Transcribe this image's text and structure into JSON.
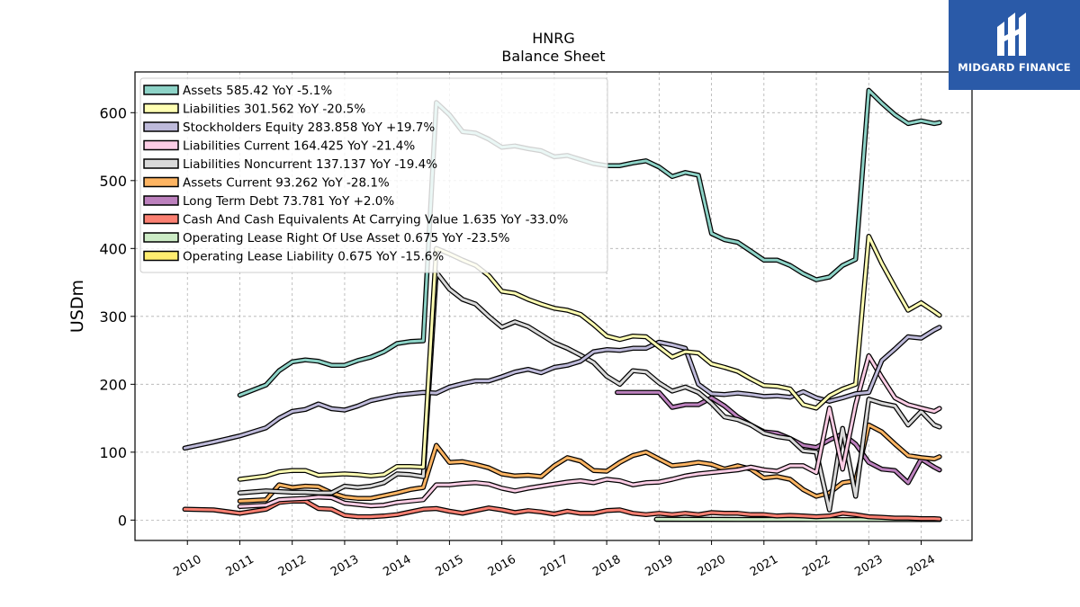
{
  "chart_data": {
    "type": "line",
    "title": "HNRG",
    "subtitle": "Balance  Sheet",
    "ylabel": "USDm",
    "xlabel": "",
    "ylim": [
      -30,
      660
    ],
    "xlim": [
      2009.0,
      2024.97
    ],
    "yticks": [
      0,
      100,
      200,
      300,
      400,
      500,
      600
    ],
    "xticks": [
      "2010",
      "2011",
      "2012",
      "2013",
      "2014",
      "2015",
      "2016",
      "2017",
      "2018",
      "2019",
      "2020",
      "2021",
      "2022",
      "2023",
      "2024"
    ],
    "grid": true,
    "legend_position": "top-left",
    "series": [
      {
        "name": "Assets",
        "legend": "Assets  585.42 YoY -5.1%",
        "color": "#8dd3c7",
        "x": [
          2011.0,
          2011.5,
          2011.75,
          2012.0,
          2012.25,
          2012.5,
          2012.75,
          2013.0,
          2013.25,
          2013.5,
          2013.75,
          2014.0,
          2014.25,
          2014.5,
          2014.75,
          2015.0,
          2015.25,
          2015.5,
          2015.75,
          2016.0,
          2016.25,
          2016.5,
          2016.75,
          2017.0,
          2017.25,
          2017.5,
          2017.75,
          2018.0,
          2018.25,
          2018.5,
          2018.75,
          2019.0,
          2019.25,
          2019.5,
          2019.75,
          2020.0,
          2020.25,
          2020.5,
          2020.75,
          2021.0,
          2021.25,
          2021.5,
          2021.75,
          2022.0,
          2022.25,
          2022.5,
          2022.75,
          2023.0,
          2023.25,
          2023.5,
          2023.75,
          2024.0,
          2024.25,
          2024.35
        ],
        "y": [
          184,
          199,
          220,
          233,
          236,
          234,
          228,
          228,
          235,
          240,
          248,
          260,
          263,
          264,
          615,
          597,
          572,
          570,
          561,
          549,
          551,
          547,
          544,
          535,
          537,
          531,
          525,
          522,
          522,
          526,
          529,
          520,
          506,
          512,
          508,
          422,
          413,
          409,
          396,
          383,
          383,
          375,
          363,
          354,
          358,
          375,
          384,
          633,
          614,
          597,
          584,
          588,
          584,
          585.42
        ]
      },
      {
        "name": "Liabilities",
        "legend": "Liabilities  301.562 YoY -20.5%",
        "color": "#ffffb3",
        "x": [
          2011.0,
          2011.5,
          2011.75,
          2012.0,
          2012.25,
          2012.5,
          2012.75,
          2013.0,
          2013.25,
          2013.5,
          2013.75,
          2014.0,
          2014.25,
          2014.5,
          2014.75,
          2015.0,
          2015.25,
          2015.5,
          2015.75,
          2016.0,
          2016.25,
          2016.5,
          2016.75,
          2017.0,
          2017.25,
          2017.5,
          2017.75,
          2018.0,
          2018.25,
          2018.5,
          2018.75,
          2019.0,
          2019.25,
          2019.5,
          2019.75,
          2020.0,
          2020.25,
          2020.5,
          2020.75,
          2021.0,
          2021.25,
          2021.5,
          2021.75,
          2022.0,
          2022.25,
          2022.5,
          2022.75,
          2023.0,
          2023.25,
          2023.5,
          2023.75,
          2024.0,
          2024.25,
          2024.35
        ],
        "y": [
          60,
          65,
          71,
          73,
          73,
          66,
          67,
          68,
          67,
          65,
          67,
          79,
          79,
          78,
          400,
          392,
          383,
          375,
          360,
          337,
          334,
          325,
          318,
          312,
          309,
          303,
          288,
          271,
          266,
          271,
          270,
          255,
          240,
          248,
          246,
          230,
          225,
          219,
          208,
          198,
          197,
          193,
          170,
          165,
          183,
          193,
          200,
          418,
          378,
          343,
          309,
          320,
          307,
          301.562
        ]
      },
      {
        "name": "Stockholders Equity",
        "legend": "Stockholders Equity  283.858 YoY +19.7%",
        "color": "#bebada",
        "x": [
          2009.95,
          2010.5,
          2011.0,
          2011.5,
          2011.75,
          2012.0,
          2012.25,
          2012.5,
          2012.75,
          2013.0,
          2013.25,
          2013.5,
          2013.75,
          2014.0,
          2014.25,
          2014.5,
          2014.75,
          2015.0,
          2015.25,
          2015.5,
          2015.75,
          2016.0,
          2016.25,
          2016.5,
          2016.75,
          2017.0,
          2017.25,
          2017.5,
          2017.75,
          2018.0,
          2018.25,
          2018.5,
          2018.75,
          2019.0,
          2019.25,
          2019.5,
          2019.75,
          2020.0,
          2020.25,
          2020.5,
          2020.75,
          2021.0,
          2021.25,
          2021.5,
          2021.75,
          2022.0,
          2022.25,
          2022.5,
          2022.75,
          2023.0,
          2023.25,
          2023.5,
          2023.75,
          2024.0,
          2024.25,
          2024.35
        ],
        "y": [
          106,
          115,
          124,
          136,
          150,
          160,
          163,
          171,
          164,
          162,
          168,
          176,
          180,
          184,
          186,
          188,
          187,
          196,
          201,
          205,
          205,
          211,
          218,
          222,
          217,
          225,
          228,
          234,
          248,
          251,
          250,
          253,
          253,
          262,
          258,
          253,
          200,
          186,
          185,
          187,
          185,
          182,
          183,
          181,
          189,
          180,
          175,
          180,
          186,
          188,
          235,
          252,
          270,
          268,
          280,
          283.858
        ]
      },
      {
        "name": "Liabilities Current",
        "legend": "Liabilities Current  164.425 YoY -21.4%",
        "color": "#fccde5",
        "x": [
          2011.0,
          2011.5,
          2011.75,
          2012.0,
          2012.25,
          2012.5,
          2012.75,
          2013.0,
          2013.25,
          2013.5,
          2013.75,
          2014.0,
          2014.25,
          2014.5,
          2014.75,
          2015.0,
          2015.25,
          2015.5,
          2015.75,
          2016.0,
          2016.25,
          2016.5,
          2016.75,
          2017.0,
          2017.25,
          2017.5,
          2017.75,
          2018.0,
          2018.25,
          2018.5,
          2018.75,
          2019.0,
          2019.25,
          2019.5,
          2019.75,
          2020.0,
          2020.25,
          2020.5,
          2020.75,
          2021.0,
          2021.25,
          2021.5,
          2021.75,
          2022.0,
          2022.25,
          2022.5,
          2022.75,
          2023.0,
          2023.25,
          2023.5,
          2023.75,
          2024.0,
          2024.25,
          2024.35
        ],
        "y": [
          20,
          22,
          30,
          31,
          32,
          34,
          33,
          25,
          23,
          21,
          22,
          26,
          28,
          30,
          52,
          52,
          54,
          55,
          53,
          47,
          43,
          47,
          50,
          53,
          56,
          58,
          55,
          60,
          58,
          52,
          55,
          56,
          60,
          65,
          68,
          70,
          72,
          74,
          78,
          74,
          72,
          80,
          80,
          70,
          165,
          75,
          170,
          242,
          210,
          180,
          170,
          165,
          160,
          164.425
        ]
      },
      {
        "name": "Liabilities Noncurrent",
        "legend": "Liabilities Noncurrent  137.137 YoY -19.4%",
        "color": "#d9d9d9",
        "x": [
          2011.0,
          2011.5,
          2011.75,
          2012.0,
          2012.25,
          2012.5,
          2012.75,
          2013.0,
          2013.25,
          2013.5,
          2013.75,
          2014.0,
          2014.25,
          2014.5,
          2014.75,
          2015.0,
          2015.25,
          2015.5,
          2015.75,
          2016.0,
          2016.25,
          2016.5,
          2016.75,
          2017.0,
          2017.25,
          2017.5,
          2017.75,
          2018.0,
          2018.25,
          2018.5,
          2018.75,
          2019.0,
          2019.25,
          2019.5,
          2019.75,
          2020.0,
          2020.25,
          2020.5,
          2020.75,
          2021.0,
          2021.25,
          2021.5,
          2021.75,
          2022.0,
          2022.25,
          2022.5,
          2022.75,
          2023.0,
          2023.25,
          2023.5,
          2023.75,
          2024.0,
          2024.25,
          2024.35
        ],
        "y": [
          40,
          43,
          42,
          41,
          41,
          40,
          40,
          50,
          48,
          50,
          55,
          68,
          67,
          64,
          365,
          340,
          325,
          318,
          300,
          284,
          292,
          285,
          273,
          261,
          253,
          243,
          232,
          212,
          200,
          220,
          218,
          202,
          190,
          196,
          188,
          172,
          152,
          148,
          140,
          128,
          123,
          120,
          102,
          100,
          15,
          135,
          35,
          178,
          172,
          168,
          140,
          160,
          140,
          137.137
        ]
      },
      {
        "name": "Assets Current",
        "legend": "Assets Current  93.262 YoY -28.1%",
        "color": "#fdb462",
        "x": [
          2011.0,
          2011.5,
          2011.75,
          2012.0,
          2012.25,
          2012.5,
          2012.75,
          2013.0,
          2013.25,
          2013.5,
          2013.75,
          2014.0,
          2014.25,
          2014.5,
          2014.75,
          2015.0,
          2015.25,
          2015.5,
          2015.75,
          2016.0,
          2016.25,
          2016.5,
          2016.75,
          2017.0,
          2017.25,
          2017.5,
          2017.75,
          2018.0,
          2018.25,
          2018.5,
          2018.75,
          2019.0,
          2019.25,
          2019.5,
          2019.75,
          2020.0,
          2020.25,
          2020.5,
          2020.75,
          2021.0,
          2021.25,
          2021.5,
          2021.75,
          2022.0,
          2022.25,
          2022.5,
          2022.75,
          2023.0,
          2023.25,
          2023.5,
          2023.75,
          2024.0,
          2024.25,
          2024.35
        ],
        "y": [
          28,
          30,
          52,
          48,
          50,
          49,
          40,
          34,
          32,
          32,
          36,
          40,
          45,
          48,
          110,
          85,
          86,
          82,
          77,
          68,
          65,
          66,
          64,
          80,
          92,
          87,
          73,
          72,
          85,
          95,
          100,
          90,
          80,
          82,
          85,
          82,
          75,
          80,
          75,
          62,
          64,
          60,
          45,
          35,
          40,
          55,
          58,
          140,
          130,
          112,
          95,
          92,
          90,
          93.262
        ]
      },
      {
        "name": "Long Term Debt",
        "legend": "Long Term Debt  73.781 YoY +2.0%",
        "color": "#bc80bd",
        "x": [
          2018.2,
          2018.5,
          2018.75,
          2019.0,
          2019.25,
          2019.5,
          2019.75,
          2020.0,
          2020.25,
          2020.5,
          2020.75,
          2021.0,
          2021.25,
          2021.5,
          2021.75,
          2022.0,
          2022.25,
          2022.5,
          2022.75,
          2023.0,
          2023.25,
          2023.5,
          2023.75,
          2024.0,
          2024.25,
          2024.35
        ],
        "y": [
          188,
          188,
          188,
          188,
          166,
          170,
          170,
          180,
          168,
          152,
          140,
          130,
          128,
          120,
          110,
          107,
          118,
          127,
          112,
          85,
          75,
          73,
          55,
          90,
          78,
          73.781
        ]
      },
      {
        "name": "Cash And Cash Equivalents At Carrying Value",
        "legend": "Cash And Cash Equivalents At Carrying Value  1.635 YoY -33.0%",
        "color": "#fb8072",
        "x": [
          2009.95,
          2010.5,
          2011.0,
          2011.5,
          2011.75,
          2012.0,
          2012.25,
          2012.5,
          2012.75,
          2013.0,
          2013.25,
          2013.5,
          2013.75,
          2014.0,
          2014.25,
          2014.5,
          2014.75,
          2015.0,
          2015.25,
          2015.5,
          2015.75,
          2016.0,
          2016.25,
          2016.5,
          2016.75,
          2017.0,
          2017.25,
          2017.5,
          2017.75,
          2018.0,
          2018.25,
          2018.5,
          2018.75,
          2019.0,
          2019.25,
          2019.5,
          2019.75,
          2020.0,
          2020.25,
          2020.5,
          2020.75,
          2021.0,
          2021.25,
          2021.5,
          2021.75,
          2022.0,
          2022.25,
          2022.5,
          2022.75,
          2023.0,
          2023.25,
          2023.5,
          2023.75,
          2024.0,
          2024.25,
          2024.35
        ],
        "y": [
          16,
          15,
          10,
          16,
          26,
          28,
          28,
          17,
          16,
          7,
          5,
          5,
          6,
          8,
          12,
          16,
          17,
          13,
          10,
          14,
          18,
          15,
          11,
          14,
          12,
          9,
          13,
          10,
          10,
          14,
          15,
          10,
          8,
          10,
          8,
          10,
          8,
          11,
          10,
          10,
          8,
          8,
          6,
          7,
          6,
          5,
          6,
          10,
          8,
          5,
          4,
          3,
          3,
          2,
          2,
          1.635
        ]
      },
      {
        "name": "Operating Lease Right Of Use Asset",
        "legend": "Operating Lease Right Of Use Asset  0.675 YoY -23.5%",
        "color": "#ccebc5",
        "x": [
          2018.95,
          2019.5,
          2020.0,
          2020.5,
          2021.0,
          2021.5,
          2022.0,
          2022.5,
          2023.0,
          2023.5,
          2024.0,
          2024.35
        ],
        "y": [
          1.2,
          1.1,
          1.1,
          1.0,
          1.0,
          1.0,
          0.9,
          0.9,
          0.9,
          0.8,
          0.7,
          0.675
        ]
      },
      {
        "name": "Operating Lease Liability",
        "legend": "Operating Lease Liability  0.675 YoY -15.6%",
        "color": "#ffed6f",
        "x": [
          2018.95,
          2019.5,
          2020.0,
          2020.5,
          2021.0,
          2021.5,
          2022.0,
          2022.5,
          2023.0,
          2023.5,
          2024.0,
          2024.35
        ],
        "y": [
          1.0,
          1.0,
          1.0,
          0.9,
          0.9,
          0.9,
          0.8,
          0.8,
          0.8,
          0.8,
          0.7,
          0.675
        ]
      }
    ]
  },
  "logo": {
    "text": "MIDGARD FINANCE",
    "icon": "midgard-logo-icon",
    "color": "#2a5aa8"
  }
}
